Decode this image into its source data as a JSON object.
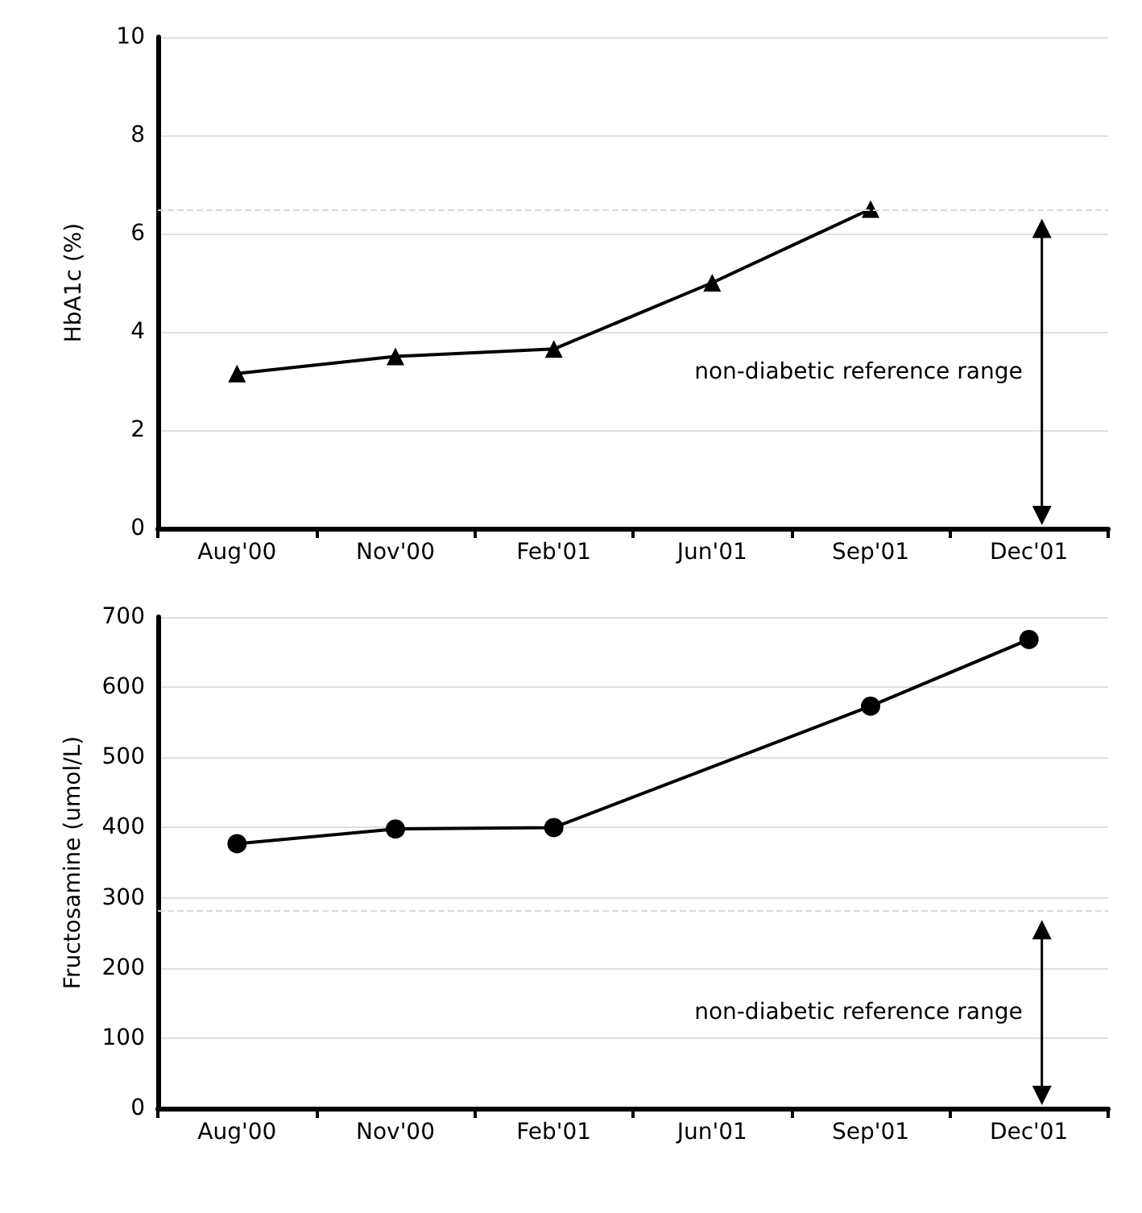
{
  "chart_data": [
    {
      "type": "line",
      "ylabel": "HbA1c (%)",
      "categories": [
        "Aug'00",
        "Nov'00",
        "Feb'01",
        "Jun'01",
        "Sep'01",
        "Dec'01"
      ],
      "series": [
        {
          "color": "#000000",
          "values": [
            3.15,
            3.5,
            3.65,
            5.0,
            6.5,
            null
          ]
        }
      ],
      "marker": "triangle",
      "line_style": "solid",
      "ylim": [
        0,
        10
      ],
      "yticks": [
        0,
        2,
        4,
        6,
        8,
        10
      ],
      "grid": "y",
      "ref_lines": [
        {
          "axis": "y",
          "value": 6.5,
          "color": "#d9d9d9",
          "line_style": "dashed"
        }
      ],
      "annotations": [
        "non-diabetic reference range"
      ]
    },
    {
      "type": "line",
      "ylabel": "Fructosamine (umol/L)",
      "categories": [
        "Aug'00",
        "Nov'00",
        "Feb'01",
        "Jun'01",
        "Sep'01",
        "Dec'01"
      ],
      "series": [
        {
          "color": "#000000",
          "values": [
            377,
            398,
            400,
            null,
            573,
            668
          ]
        }
      ],
      "marker": "circle",
      "line_style": "solid",
      "ylim": [
        0,
        700
      ],
      "yticks": [
        0,
        100,
        200,
        300,
        400,
        500,
        600,
        700
      ],
      "grid": "y",
      "ref_lines": [
        {
          "axis": "y",
          "value": 282,
          "color": "#d9d9d9",
          "line_style": "dashed"
        }
      ],
      "annotations": [
        "non-diabetic reference range"
      ]
    }
  ]
}
